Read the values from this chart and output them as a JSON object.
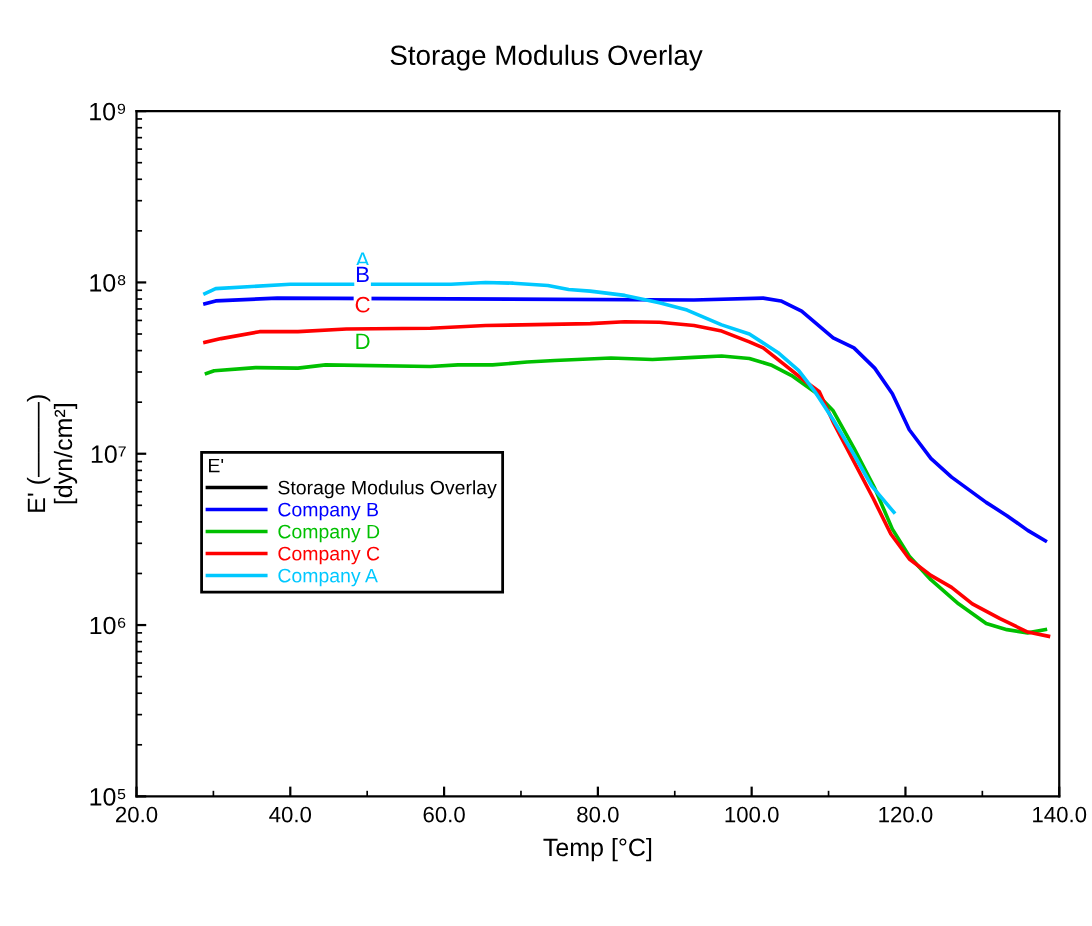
{
  "chart_data": {
    "type": "line",
    "title": "Storage Modulus Overlay",
    "xlabel": "Temp [°C]",
    "ylabel": "E' (———)\n[dyn/cm²]",
    "legend_title": "E'",
    "log": "y",
    "grid": false,
    "legend": "left",
    "marker": "none",
    "line_style": "solid",
    "xlim": [
      20,
      140
    ],
    "xticks": [
      {
        "value": 20,
        "label": "20.0"
      },
      {
        "value": 40,
        "label": "40.0"
      },
      {
        "value": 60,
        "label": "60.0"
      },
      {
        "value": 80,
        "label": "80.0"
      },
      {
        "value": 100,
        "label": "100.0"
      },
      {
        "value": 120,
        "label": "120.0"
      },
      {
        "value": 140,
        "label": "140.0"
      }
    ],
    "ylim": [
      100000,
      1000000000
    ],
    "yticks": [
      {
        "value": 100000,
        "label": "10⁵"
      },
      {
        "value": 1000000,
        "label": "10⁶"
      },
      {
        "value": 10000000,
        "label": "10⁷"
      },
      {
        "value": 100000000,
        "label": "10⁸"
      },
      {
        "value": 1000000000,
        "label": "10⁹"
      }
    ],
    "annotations": [
      "A",
      "B",
      "C",
      "D"
    ],
    "series": [
      {
        "name": "Storage Modulus Overlay",
        "color": "#000000"
      },
      {
        "name": "Company B",
        "color": "#0000ff",
        "x": [
          28.9,
          30.3,
          38.3,
          92.5,
          101.5,
          103.8,
          106.5,
          110.6,
          113.3,
          116,
          118.3,
          120.5,
          123.3,
          126,
          130.5,
          133.2,
          135.9,
          138.2
        ],
        "values": [
          75000000,
          78000000,
          81000000,
          79000000,
          81000000,
          78000000,
          68000000,
          47500000,
          41500000,
          31600000,
          22400000,
          13800000,
          9400000,
          7300000,
          5200000,
          4350000,
          3570000,
          3100000
        ]
      },
      {
        "name": "Company D",
        "color": "#00c000",
        "x": [
          29.1,
          30.1,
          35.5,
          41,
          44.6,
          58.2,
          61.8,
          66.3,
          70.8,
          74.4,
          81.7,
          87.1,
          92.5,
          96.1,
          99.7,
          102.5,
          105.2,
          108.3,
          110.6,
          113.3,
          116,
          118.3,
          120.5,
          123.3,
          126.9,
          130.5,
          133.2,
          135.9,
          138.2
        ],
        "values": [
          29400000,
          30500000,
          31800000,
          31600000,
          33000000,
          32300000,
          33000000,
          33000000,
          34300000,
          35000000,
          36200000,
          35500000,
          36500000,
          37200000,
          36000000,
          33000000,
          28600000,
          22800000,
          17800000,
          10800000,
          6300000,
          3630000,
          2520000,
          1840000,
          1330000,
          1020000,
          940000,
          900000,
          940000
        ]
      },
      {
        "name": "Company C",
        "color": "#ff0000",
        "x": [
          28.9,
          31,
          36,
          41,
          47.3,
          58.2,
          65.4,
          79,
          83.5,
          88,
          92.5,
          96.1,
          99.7,
          101.5,
          104.3,
          107,
          108.8,
          110.6,
          113.3,
          115.8,
          118.1,
          120.5,
          123.3,
          126,
          128.7,
          132.3,
          135.9,
          138.6
        ],
        "values": [
          44700000,
          47000000,
          51600000,
          51600000,
          53500000,
          54000000,
          56000000,
          57500000,
          59000000,
          58500000,
          56000000,
          52000000,
          45000000,
          41500000,
          33000000,
          26400000,
          23000000,
          15300000,
          9000000,
          5500000,
          3400000,
          2430000,
          1950000,
          1660000,
          1330000,
          1090000,
          910000,
          860000
        ]
      },
      {
        "name": "Company A",
        "color": "#00c8ff",
        "x": [
          28.9,
          30.3,
          40,
          60.9,
          65.4,
          69,
          73.5,
          76.2,
          79,
          83.5,
          88,
          91.6,
          96.1,
          99.7,
          103.4,
          106.1,
          108.3,
          110.6,
          113.3,
          115.6,
          118.5
        ],
        "values": [
          86000000,
          92000000,
          97500000,
          97500000,
          100000000,
          99000000,
          96000000,
          91000000,
          89000000,
          84000000,
          76000000,
          69000000,
          56500000,
          50000000,
          39000000,
          30700000,
          22800000,
          15800000,
          9900000,
          6500000,
          4550000
        ]
      }
    ]
  }
}
